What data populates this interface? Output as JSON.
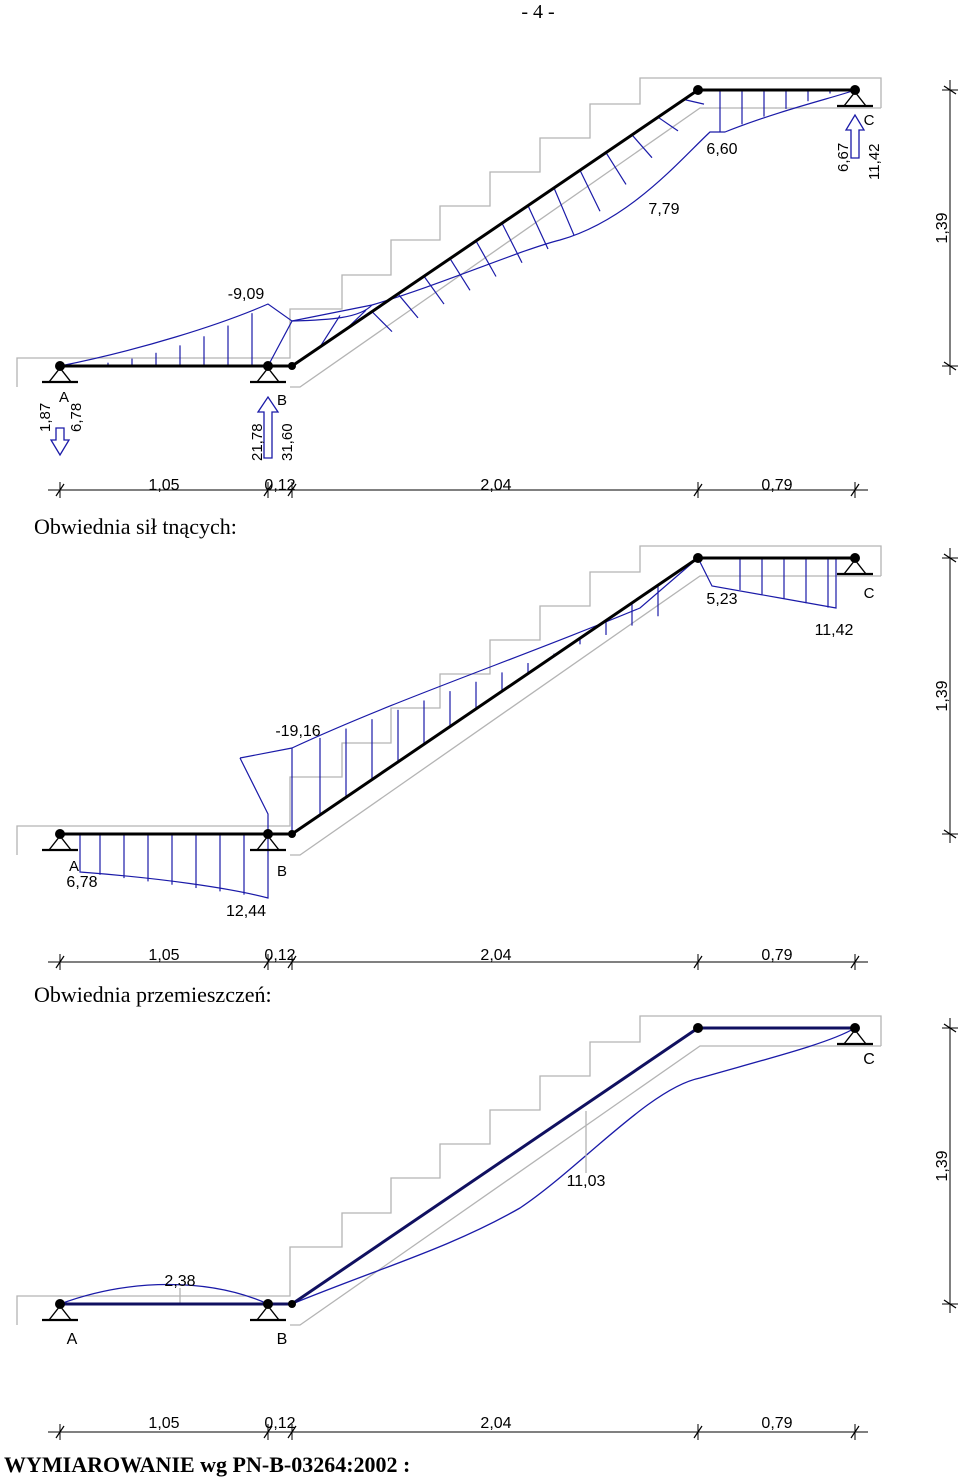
{
  "page_number": "- 4 -",
  "diagram1": {
    "labels": {
      "moment_left": "-9,09",
      "moment_mid": "7,79",
      "moment_right": "6,60",
      "node_a": "A",
      "node_b": "B",
      "node_c": "C",
      "reaction_a_1": "1,87",
      "reaction_a_2": "6,78",
      "reaction_b_1": "21,78",
      "reaction_b_2": "31,60",
      "reaction_c_1": "6,67",
      "reaction_c_2": "11,42"
    },
    "dims": [
      "1,05",
      "0,12",
      "2,04",
      "0,79"
    ],
    "height": "1,39"
  },
  "section_shear": {
    "title": "Obwiednia sił tnących:",
    "labels": {
      "v_a": "6,78",
      "v_b": "12,44",
      "v_stair": "-19,16",
      "v_upper": "5,23",
      "v_c": "11,42",
      "node_a": "A",
      "node_b": "B",
      "node_c": "C"
    },
    "dims": [
      "1,05",
      "0,12",
      "2,04",
      "0,79"
    ],
    "height": "1,39"
  },
  "section_displacement": {
    "title": "Obwiednia przemieszczeń:",
    "labels": {
      "d_left": "2,38",
      "d_mid": "11,03",
      "node_a": "A",
      "node_b": "B",
      "node_c": "C"
    },
    "dims": [
      "1,05",
      "0,12",
      "2,04",
      "0,79"
    ],
    "height": "1,39"
  },
  "footer": {
    "heading": "WYMIAROWANIE wg PN-B-03264:2002 :"
  },
  "colors": {
    "structure": "#000000",
    "diagram": "#1a1aa8",
    "outline": "#b4b4b4"
  }
}
